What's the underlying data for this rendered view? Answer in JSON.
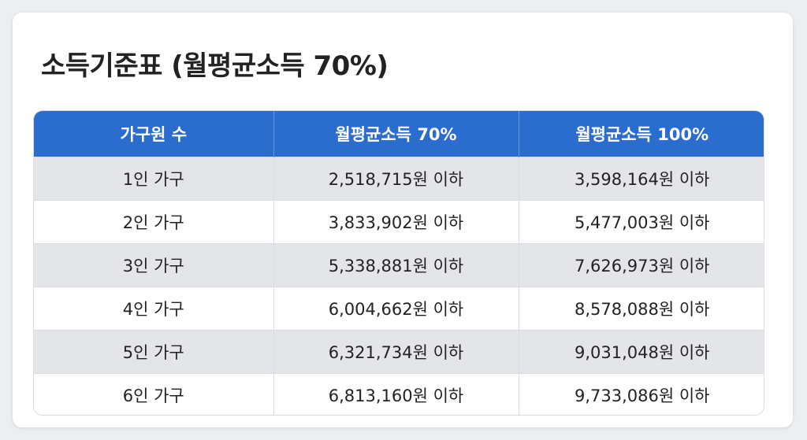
{
  "title": "소득기준표 (월평균소득 70%)",
  "table": {
    "headers": [
      "가구원 수",
      "월평균소득 70%",
      "월평균소득 100%"
    ],
    "rows": [
      [
        "1인 가구",
        "2,518,715원 이하",
        "3,598,164원 이하"
      ],
      [
        "2인 가구",
        "3,833,902원 이하",
        "5,477,003원 이하"
      ],
      [
        "3인 가구",
        "5,338,881원 이하",
        "7,626,973원 이하"
      ],
      [
        "4인 가구",
        "6,004,662원 이하",
        "8,578,088원 이하"
      ],
      [
        "5인 가구",
        "6,321,734원 이하",
        "9,031,048원 이하"
      ],
      [
        "6인 가구",
        "6,813,160원 이하",
        "9,733,086원 이하"
      ]
    ]
  },
  "colors": {
    "header_bg": "#2b6ccf",
    "header_text": "#ffffff",
    "row_alt_bg": "#e3e5e8",
    "row_bg": "#ffffff"
  }
}
